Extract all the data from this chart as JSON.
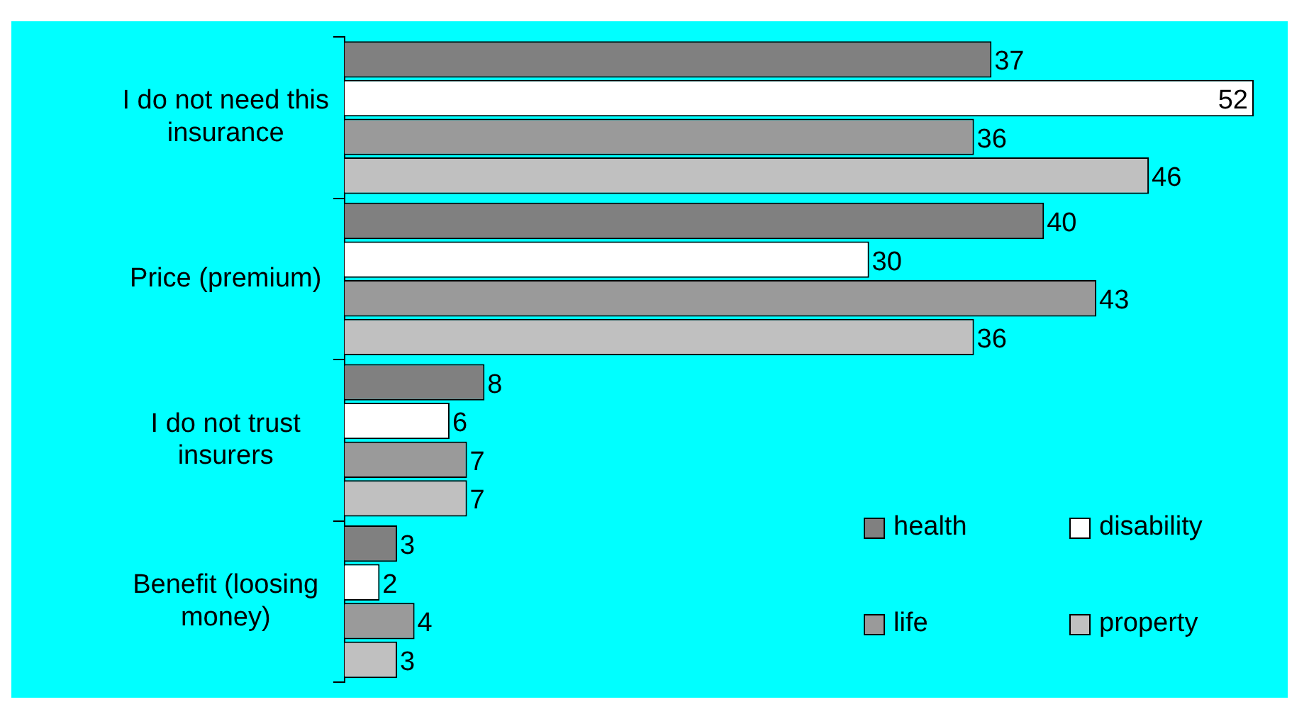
{
  "chart_data": {
    "type": "bar",
    "orientation": "horizontal",
    "categories": [
      "I do not need this insurance",
      "Price (premium)",
      "I do not trust insurers",
      "Benefit (loosing money)"
    ],
    "series": [
      {
        "name": "health",
        "color": "#808080",
        "values": [
          37,
          40,
          8,
          3
        ]
      },
      {
        "name": "disability",
        "color": "#ffffff",
        "values": [
          52,
          30,
          6,
          2
        ]
      },
      {
        "name": "life",
        "color": "#9a9a9a",
        "values": [
          36,
          43,
          7,
          4
        ]
      },
      {
        "name": "property",
        "color": "#c0c0c0",
        "values": [
          46,
          36,
          7,
          3
        ]
      }
    ],
    "xlim": [
      0,
      52
    ],
    "data_labels": true,
    "legend": "bottom right",
    "grid": false
  }
}
